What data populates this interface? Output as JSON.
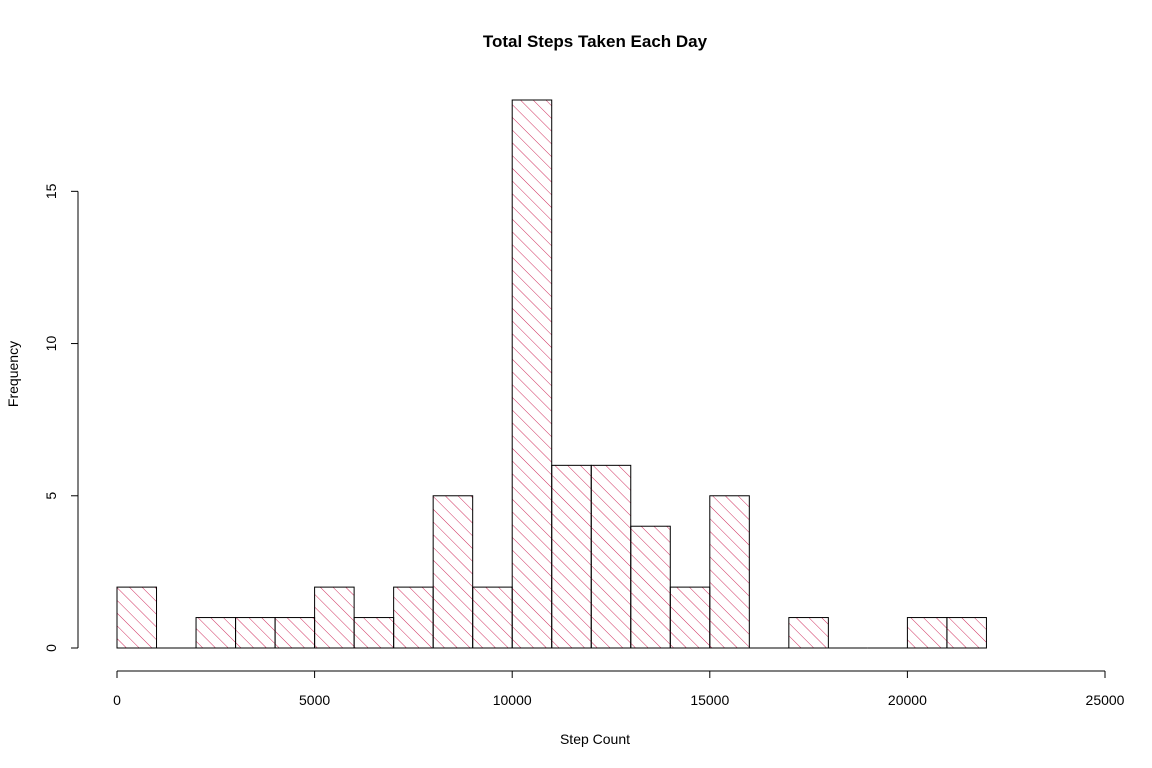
{
  "chart_data": {
    "type": "bar",
    "title": "Total Steps Taken Each Day",
    "xlabel": "Step Count",
    "ylabel": "Frequency",
    "bin_width": 1000,
    "bin_starts": [
      0,
      1000,
      2000,
      3000,
      4000,
      5000,
      6000,
      7000,
      8000,
      9000,
      10000,
      11000,
      12000,
      13000,
      14000,
      15000,
      16000,
      17000,
      18000,
      19000,
      20000,
      21000
    ],
    "values": [
      2,
      0,
      1,
      1,
      1,
      2,
      1,
      2,
      5,
      2,
      18,
      6,
      6,
      4,
      2,
      5,
      0,
      1,
      0,
      0,
      1,
      1
    ],
    "xlim": [
      0,
      25000
    ],
    "ylim": [
      0,
      18
    ],
    "x_ticks": [
      0,
      5000,
      10000,
      15000,
      20000,
      25000
    ],
    "y_ticks": [
      0,
      5,
      10,
      15
    ],
    "grid": false,
    "legend": "none",
    "fill_pattern": "diagonal-hatch",
    "hatch_color": "#D0315F",
    "border_color": "#000000"
  }
}
